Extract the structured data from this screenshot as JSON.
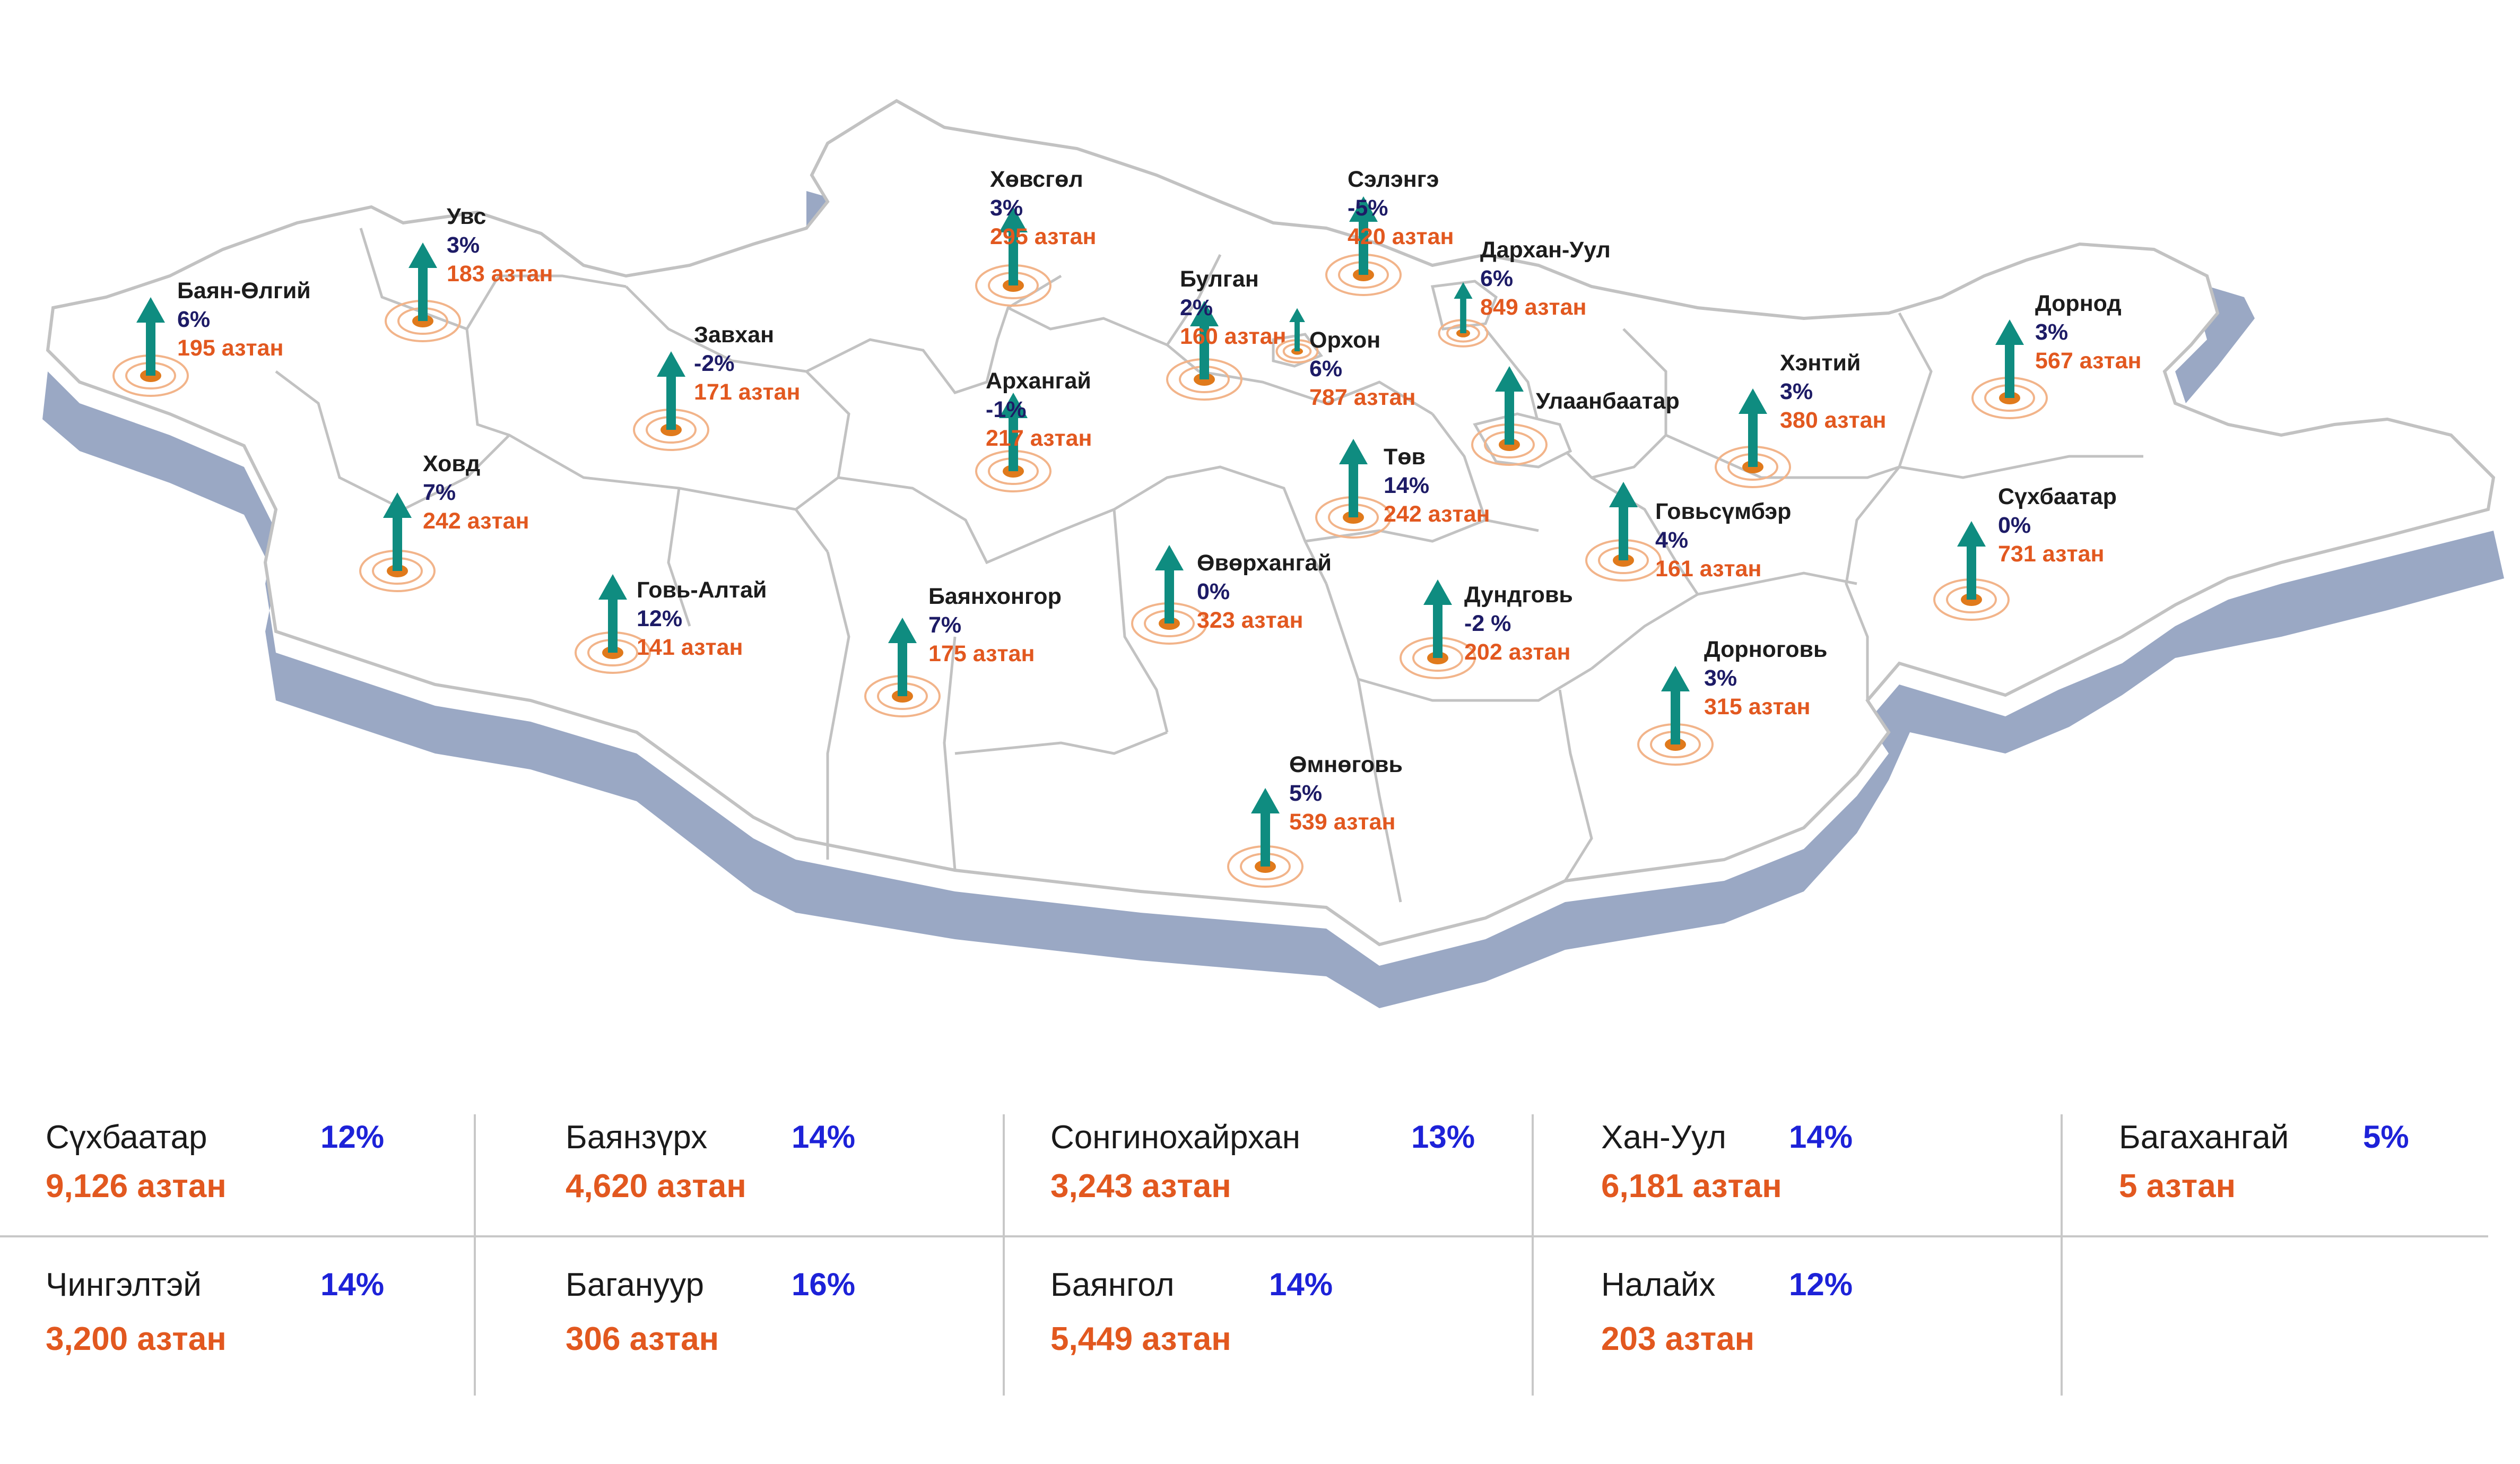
{
  "colors": {
    "arrow": "#0f8c80",
    "dot": "#e07a1c",
    "ring": "#f2b48a",
    "map_fill": "#ffffff",
    "map_border": "#c2c2c2",
    "map_shadow": "#9aa8c4",
    "name": "#1c1c1c",
    "percent": "#1d1b66",
    "count": "#e2581f",
    "table_percent": "#1d22d8"
  },
  "icons": {
    "marker": "up-arrow-icon",
    "target": "target-rings-icon"
  },
  "provinces": [
    {
      "name": "Баян-Өлгий",
      "percent": "6%",
      "count": "195 азтан"
    },
    {
      "name": "Увс",
      "percent": "3%",
      "count": "183 азтан"
    },
    {
      "name": "Ховд",
      "percent": "7%",
      "count": "242 азтан"
    },
    {
      "name": "Завхан",
      "percent": "-2%",
      "count": "171 азтан"
    },
    {
      "name": "Говь-Алтай",
      "percent": "12%",
      "count": "141 азтан"
    },
    {
      "name": "Хөвсгөл",
      "percent": "3%",
      "count": "295 азтан"
    },
    {
      "name": "Архангай",
      "percent": "-1%",
      "count": "217 азтан"
    },
    {
      "name": "Баянхонгор",
      "percent": "7%",
      "count": "175 азтан"
    },
    {
      "name": "Булган",
      "percent": "2%",
      "count": "160 азтан"
    },
    {
      "name": "Сэлэнгэ",
      "percent": "-5%",
      "count": "420 азтан"
    },
    {
      "name": "Орхон",
      "percent": "6%",
      "count": "787 азтан"
    },
    {
      "name": "Дархан-Уул",
      "percent": "6%",
      "count": "849 азтан"
    },
    {
      "name": "Улаанбаатар",
      "percent": "",
      "count": ""
    },
    {
      "name": "Төв",
      "percent": "14%",
      "count": "242 азтан"
    },
    {
      "name": "Өвөрхангай",
      "percent": "0%",
      "count": "323 азтан"
    },
    {
      "name": "Өмнөговь",
      "percent": "5%",
      "count": "539 азтан"
    },
    {
      "name": "Дундговь",
      "percent": "-2 %",
      "count": "202 азтан"
    },
    {
      "name": "Говьсүмбэр",
      "percent": "4%",
      "count": "161 азтан"
    },
    {
      "name": "Хэнтий",
      "percent": "3%",
      "count": "380 азтан"
    },
    {
      "name": "Дорнод",
      "percent": "3%",
      "count": "567 азтан"
    },
    {
      "name": "Сүхбаатар",
      "percent": "0%",
      "count": "731 азтан"
    },
    {
      "name": "Дорноговь",
      "percent": "3%",
      "count": "315 азтан"
    }
  ],
  "districts": [
    {
      "name": "Сүхбаатар",
      "percent": "12%",
      "count": "9,126 азтан"
    },
    {
      "name": "Баянзүрх",
      "percent": "14%",
      "count": "4,620 азтан"
    },
    {
      "name": "Сонгинохайрхан",
      "percent": "13%",
      "count": "3,243 азтан"
    },
    {
      "name": "Хан-Уул",
      "percent": "14%",
      "count": "6,181 азтан"
    },
    {
      "name": "Багахангай",
      "percent": "5%",
      "count": "5 азтан"
    },
    {
      "name": "Чингэлтэй",
      "percent": "14%",
      "count": "3,200 азтан"
    },
    {
      "name": "Багануур",
      "percent": "16%",
      "count": "306 азтан"
    },
    {
      "name": "Баянгол",
      "percent": "14%",
      "count": "5,449 азтан"
    },
    {
      "name": "Налайх",
      "percent": "12%",
      "count": "203 азтан"
    }
  ]
}
